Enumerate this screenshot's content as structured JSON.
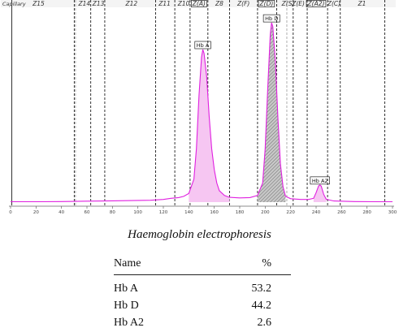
{
  "chart_data": {
    "type": "line",
    "method_label": "Capillary",
    "x_ticks": [
      0,
      20,
      40,
      60,
      80,
      100,
      120,
      140,
      160,
      180,
      200,
      220,
      240,
      260,
      280,
      300
    ],
    "xlim": [
      0,
      300
    ],
    "zones": [
      {
        "label": "Z15",
        "x": 22
      },
      {
        "label": "Z14",
        "x": 58
      },
      {
        "label": "Z13",
        "x": 69
      },
      {
        "label": "Z12",
        "x": 95
      },
      {
        "label": "Z11",
        "x": 121
      },
      {
        "label": "Z10",
        "x": 136
      },
      {
        "label": "Z(A)",
        "x": 148,
        "boxed": true
      },
      {
        "label": "Z8",
        "x": 164
      },
      {
        "label": "Z(F)",
        "x": 183
      },
      {
        "label": "Z(D)",
        "x": 201,
        "boxed": true
      },
      {
        "label": "Z(S)",
        "x": 218
      },
      {
        "label": "Z(E)",
        "x": 226
      },
      {
        "label": "Z(A2)",
        "x": 240,
        "boxed": true
      },
      {
        "label": "Z(C)",
        "x": 254
      },
      {
        "label": "Z1",
        "x": 276
      }
    ],
    "zone_boundaries": [
      {
        "x": 1,
        "style": "solid"
      },
      {
        "x": 50,
        "style": "dashed"
      },
      {
        "x": 51,
        "style": "gray"
      },
      {
        "x": 63,
        "style": "dashed"
      },
      {
        "x": 74,
        "style": "dashed"
      },
      {
        "x": 114,
        "style": "dashed"
      },
      {
        "x": 129,
        "style": "dashed"
      },
      {
        "x": 141,
        "style": "dashed"
      },
      {
        "x": 155,
        "style": "dashed"
      },
      {
        "x": 172,
        "style": "dashed"
      },
      {
        "x": 194,
        "style": "dashed"
      },
      {
        "x": 209,
        "style": "dashed"
      },
      {
        "x": 217,
        "style": "gray"
      },
      {
        "x": 222,
        "style": "dashed"
      },
      {
        "x": 233,
        "style": "dashed"
      },
      {
        "x": 249,
        "style": "dashed"
      },
      {
        "x": 259,
        "style": "dashed"
      },
      {
        "x": 294,
        "style": "dashed"
      }
    ],
    "trace": [
      [
        0,
        0.2
      ],
      [
        20,
        0.2
      ],
      [
        40,
        0.3
      ],
      [
        60,
        0.5
      ],
      [
        80,
        0.7
      ],
      [
        100,
        0.9
      ],
      [
        110,
        1
      ],
      [
        120,
        1.4
      ],
      [
        126,
        2
      ],
      [
        132,
        2.4
      ],
      [
        136,
        3
      ],
      [
        140,
        4.5
      ],
      [
        144,
        12
      ],
      [
        146,
        28
      ],
      [
        148,
        56
      ],
      [
        150,
        76
      ],
      [
        151,
        80
      ],
      [
        152,
        78
      ],
      [
        154,
        66
      ],
      [
        156,
        45
      ],
      [
        158,
        28
      ],
      [
        160,
        17
      ],
      [
        162,
        10
      ],
      [
        164,
        6
      ],
      [
        168,
        3.5
      ],
      [
        172,
        2.5
      ],
      [
        180,
        2.2
      ],
      [
        188,
        2.4
      ],
      [
        194,
        3.5
      ],
      [
        198,
        10
      ],
      [
        200,
        28
      ],
      [
        202,
        60
      ],
      [
        204,
        88
      ],
      [
        205,
        94
      ],
      [
        206,
        92
      ],
      [
        208,
        74
      ],
      [
        210,
        44
      ],
      [
        212,
        20
      ],
      [
        214,
        8
      ],
      [
        216,
        3
      ],
      [
        220,
        1.8
      ],
      [
        228,
        1.4
      ],
      [
        234,
        1.4
      ],
      [
        238,
        2
      ],
      [
        240,
        5
      ],
      [
        242,
        8.5
      ],
      [
        243,
        9
      ],
      [
        244,
        8.4
      ],
      [
        246,
        4
      ],
      [
        248,
        1.5
      ],
      [
        254,
        0.6
      ],
      [
        270,
        0.3
      ],
      [
        290,
        0.2
      ],
      [
        300,
        0.2
      ]
    ],
    "peaks": [
      {
        "label": "Hb A",
        "x": 151,
        "percent": 53.2
      },
      {
        "label": "Hb D",
        "x": 205,
        "percent": 44.2
      },
      {
        "label": "Hb A2",
        "x": 243,
        "percent": 2.6
      }
    ]
  },
  "caption": "Haemoglobin electrophoresis",
  "results_table": {
    "header": {
      "name": "Name",
      "percent": "%"
    },
    "rows": [
      {
        "name": "Hb A",
        "percent": "53.2"
      },
      {
        "name": "Hb D",
        "percent": "44.2"
      },
      {
        "name": "Hb A2",
        "percent": "2.6"
      }
    ]
  },
  "colors": {
    "trace": "#e020e0",
    "hb_a_fill": "#f6c6f2",
    "hb_d_fill": "#c4c4c4",
    "hb_d_hatch": "#555555",
    "zone_line": "#000000",
    "zone_line_light": "#9a9a9a",
    "frame": "#666666"
  }
}
